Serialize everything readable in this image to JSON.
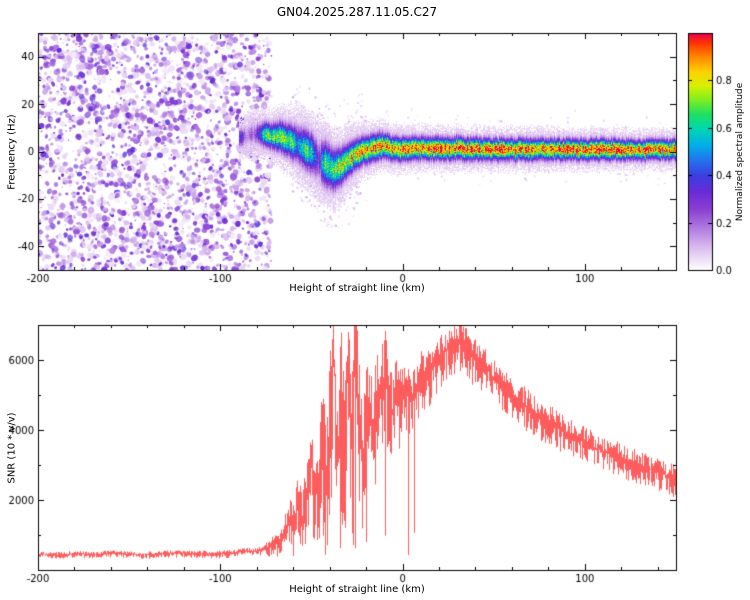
{
  "title": "GN04.2025.287.11.05.C27",
  "chart_data": [
    {
      "type": "heatmap",
      "name": "doppler-spectrogram",
      "xlabel": "Height of straight line (km)",
      "ylabel": "Frequency (Hz)",
      "xlim": [
        -200,
        150
      ],
      "ylim": [
        -50,
        50
      ],
      "xticks": [
        -200,
        -100,
        0,
        100
      ],
      "yticks": [
        -40,
        -20,
        0,
        20,
        40
      ],
      "colorbar": {
        "label": "Normalized spectral amplitude",
        "ticks": [
          0,
          0.2,
          0.4,
          0.6,
          0.8
        ],
        "range": [
          0,
          1
        ]
      },
      "colormap_stops": [
        [
          0.0,
          "#ffffff"
        ],
        [
          0.04,
          "#f0e4f7"
        ],
        [
          0.1,
          "#d9b8ee"
        ],
        [
          0.18,
          "#b07ae0"
        ],
        [
          0.26,
          "#8a3fd1"
        ],
        [
          0.33,
          "#6a2bd8"
        ],
        [
          0.4,
          "#3b3fe0"
        ],
        [
          0.47,
          "#2277ee"
        ],
        [
          0.53,
          "#00b0e8"
        ],
        [
          0.6,
          "#00d8b0"
        ],
        [
          0.66,
          "#20e060"
        ],
        [
          0.72,
          "#80ee20"
        ],
        [
          0.78,
          "#d8f000"
        ],
        [
          0.84,
          "#ffd000"
        ],
        [
          0.9,
          "#ff8800"
        ],
        [
          0.96,
          "#ff3300"
        ],
        [
          1.0,
          "#e80050"
        ]
      ],
      "noise_region": {
        "x_min": -200,
        "x_max": -72
      },
      "plume": {
        "x0": -50,
        "x1": -28,
        "max_depth_hz": 26
      },
      "trace": [
        {
          "x": -90,
          "f": 6.0,
          "a": 0.45,
          "w": 2.5
        },
        {
          "x": -84,
          "f": 7.5,
          "a": 0.55,
          "w": 2.8
        },
        {
          "x": -78,
          "f": 8.0,
          "a": 0.62,
          "w": 3.0
        },
        {
          "x": -73,
          "f": 7.0,
          "a": 0.68,
          "w": 3.2
        },
        {
          "x": -68,
          "f": 6.5,
          "a": 0.6,
          "w": 3.8
        },
        {
          "x": -63,
          "f": 5.0,
          "a": 0.65,
          "w": 4.2
        },
        {
          "x": -58,
          "f": 3.0,
          "a": 0.6,
          "w": 4.8
        },
        {
          "x": -54,
          "f": 1.5,
          "a": 0.65,
          "w": 5.0
        },
        {
          "x": -50,
          "f": -0.5,
          "a": 0.6,
          "w": 5.2
        },
        {
          "x": -46,
          "f": -3.0,
          "a": 0.62,
          "w": 5.5
        },
        {
          "x": -42,
          "f": -5.5,
          "a": 0.6,
          "w": 5.8
        },
        {
          "x": -38,
          "f": -7.5,
          "a": 0.68,
          "w": 5.2
        },
        {
          "x": -34,
          "f": -6.0,
          "a": 0.72,
          "w": 4.6
        },
        {
          "x": -30,
          "f": -3.5,
          "a": 0.75,
          "w": 4.2
        },
        {
          "x": -26,
          "f": -1.5,
          "a": 0.8,
          "w": 3.8
        },
        {
          "x": -22,
          "f": 0.5,
          "a": 0.88,
          "w": 3.5
        },
        {
          "x": -18,
          "f": 1.0,
          "a": 0.85,
          "w": 3.4
        },
        {
          "x": -14,
          "f": 2.5,
          "a": 0.93,
          "w": 3.3
        },
        {
          "x": -10,
          "f": 2.5,
          "a": 0.88,
          "w": 3.1
        },
        {
          "x": -6,
          "f": 1.5,
          "a": 0.9,
          "w": 3.0
        },
        {
          "x": -2,
          "f": 1.0,
          "a": 0.86,
          "w": 3.0
        },
        {
          "x": 4,
          "f": 1.5,
          "a": 0.92,
          "w": 2.9
        },
        {
          "x": 15,
          "f": 1.5,
          "a": 0.94,
          "w": 2.8
        },
        {
          "x": 30,
          "f": 1.5,
          "a": 0.93,
          "w": 2.8
        },
        {
          "x": 50,
          "f": 1.0,
          "a": 0.95,
          "w": 2.7
        },
        {
          "x": 70,
          "f": 1.0,
          "a": 0.92,
          "w": 2.7
        },
        {
          "x": 90,
          "f": 1.0,
          "a": 0.94,
          "w": 2.6
        },
        {
          "x": 110,
          "f": 1.0,
          "a": 0.93,
          "w": 2.6
        },
        {
          "x": 130,
          "f": 1.0,
          "a": 0.94,
          "w": 2.5
        },
        {
          "x": 150,
          "f": 1.0,
          "a": 0.93,
          "w": 2.5
        }
      ]
    },
    {
      "type": "line",
      "name": "snr-profile",
      "xlabel": "Height of straight line (km)",
      "ylabel": "SNR (10 * v/v)",
      "xlim": [
        -200,
        150
      ],
      "ylim": [
        0,
        7000
      ],
      "xticks": [
        -200,
        -100,
        0,
        100
      ],
      "yticks": [
        2000,
        4000,
        6000
      ],
      "color": "#ff3333",
      "points": [
        [
          -200,
          450
        ],
        [
          -190,
          430
        ],
        [
          -180,
          465
        ],
        [
          -170,
          445
        ],
        [
          -160,
          470
        ],
        [
          -150,
          450
        ],
        [
          -140,
          435
        ],
        [
          -130,
          470
        ],
        [
          -120,
          480
        ],
        [
          -110,
          455
        ],
        [
          -100,
          465
        ],
        [
          -95,
          480
        ],
        [
          -90,
          520
        ],
        [
          -85,
          555
        ],
        [
          -80,
          525
        ],
        [
          -75,
          610
        ],
        [
          -72,
          700
        ],
        [
          -70,
          880
        ],
        [
          -68,
          720
        ],
        [
          -65,
          1150
        ],
        [
          -62,
          1500
        ],
        [
          -60,
          1250
        ],
        [
          -58,
          1950
        ],
        [
          -55,
          1500
        ],
        [
          -52,
          2450
        ],
        [
          -50,
          3200
        ],
        [
          -48,
          2050
        ],
        [
          -46,
          2800
        ],
        [
          -44,
          3600
        ],
        [
          -42,
          2250
        ],
        [
          -40,
          4100
        ],
        [
          -38,
          6700
        ],
        [
          -36,
          3100
        ],
        [
          -34,
          5100
        ],
        [
          -32,
          2700
        ],
        [
          -30,
          6300
        ],
        [
          -28,
          3400
        ],
        [
          -26,
          6900
        ],
        [
          -24,
          4000
        ],
        [
          -22,
          3000
        ],
        [
          -20,
          5100
        ],
        [
          -18,
          4400
        ],
        [
          -16,
          3600
        ],
        [
          -14,
          5500
        ],
        [
          -12,
          4800
        ],
        [
          -10,
          5700
        ],
        [
          -8,
          5000
        ],
        [
          -6,
          4400
        ],
        [
          -4,
          5300
        ],
        [
          -2,
          4800
        ],
        [
          0,
          5100
        ],
        [
          5,
          5000
        ],
        [
          10,
          5500
        ],
        [
          15,
          5700
        ],
        [
          20,
          6100
        ],
        [
          25,
          6350
        ],
        [
          30,
          6550
        ],
        [
          35,
          6350
        ],
        [
          40,
          6000
        ],
        [
          45,
          5800
        ],
        [
          50,
          5450
        ],
        [
          55,
          5200
        ],
        [
          60,
          5000
        ],
        [
          65,
          4800
        ],
        [
          70,
          4600
        ],
        [
          75,
          4400
        ],
        [
          80,
          4250
        ],
        [
          85,
          4050
        ],
        [
          90,
          3900
        ],
        [
          95,
          3800
        ],
        [
          100,
          3650
        ],
        [
          105,
          3500
        ],
        [
          110,
          3400
        ],
        [
          115,
          3300
        ],
        [
          120,
          3200
        ],
        [
          125,
          3100
        ],
        [
          130,
          3000
        ],
        [
          135,
          2900
        ],
        [
          140,
          2800
        ],
        [
          145,
          2700
        ],
        [
          150,
          2600
        ]
      ],
      "jitter": [
        [
          -200,
          90
        ],
        [
          -90,
          110
        ],
        [
          -78,
          140
        ],
        [
          -72,
          260
        ],
        [
          -65,
          450
        ],
        [
          -58,
          800
        ],
        [
          -52,
          1100
        ],
        [
          -46,
          1700
        ],
        [
          -40,
          2400
        ],
        [
          -34,
          2600
        ],
        [
          -28,
          2400
        ],
        [
          -22,
          2000
        ],
        [
          -16,
          1700
        ],
        [
          -10,
          1500
        ],
        [
          -4,
          1200
        ],
        [
          2,
          1000
        ],
        [
          10,
          850
        ],
        [
          20,
          750
        ],
        [
          30,
          700
        ],
        [
          45,
          650
        ],
        [
          60,
          600
        ],
        [
          80,
          550
        ],
        [
          100,
          500
        ],
        [
          125,
          470
        ],
        [
          150,
          450
        ]
      ]
    }
  ]
}
